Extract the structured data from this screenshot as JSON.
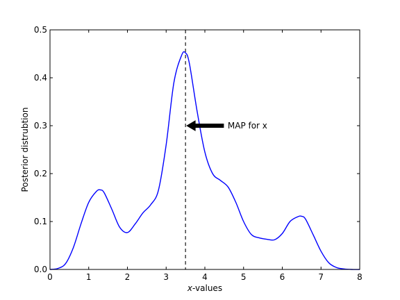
{
  "chart_data": {
    "type": "line",
    "xlabel_var": "x",
    "xlabel_suffix": "-values",
    "ylabel": "Posterior distrubtion",
    "xlim": [
      0,
      8
    ],
    "ylim": [
      0,
      0.5
    ],
    "xticks": [
      0,
      1,
      2,
      3,
      4,
      5,
      6,
      7,
      8
    ],
    "yticks": [
      0.0,
      0.1,
      0.2,
      0.3,
      0.4,
      0.5
    ],
    "ytick_labels": [
      "0.0",
      "0.1",
      "0.2",
      "0.3",
      "0.4",
      "0.5"
    ],
    "grid": false,
    "series": [
      {
        "color": "#0000ff",
        "x": [
          0.0,
          0.2,
          0.4,
          0.6,
          0.8,
          1.0,
          1.2,
          1.3,
          1.4,
          1.6,
          1.8,
          2.0,
          2.2,
          2.4,
          2.6,
          2.8,
          3.0,
          3.2,
          3.4,
          3.5,
          3.6,
          3.8,
          4.0,
          4.2,
          4.4,
          4.6,
          4.8,
          5.0,
          5.2,
          5.4,
          5.6,
          5.8,
          6.0,
          6.2,
          6.4,
          6.5,
          6.6,
          6.8,
          7.0,
          7.2,
          7.4,
          7.6,
          7.8,
          8.0
        ],
        "y": [
          0.0,
          0.002,
          0.012,
          0.045,
          0.095,
          0.14,
          0.163,
          0.166,
          0.16,
          0.125,
          0.088,
          0.077,
          0.095,
          0.118,
          0.135,
          0.165,
          0.26,
          0.39,
          0.447,
          0.452,
          0.43,
          0.33,
          0.245,
          0.2,
          0.186,
          0.172,
          0.14,
          0.1,
          0.073,
          0.066,
          0.063,
          0.062,
          0.075,
          0.1,
          0.11,
          0.111,
          0.105,
          0.072,
          0.038,
          0.014,
          0.004,
          0.001,
          0.0,
          0.0
        ]
      }
    ],
    "vline": {
      "x": 3.5,
      "style": "dashed",
      "color": "#000000"
    },
    "annotation": {
      "text": "MAP for x",
      "arrow_to": [
        3.5,
        0.3
      ],
      "text_at": [
        4.5,
        0.3
      ]
    }
  }
}
